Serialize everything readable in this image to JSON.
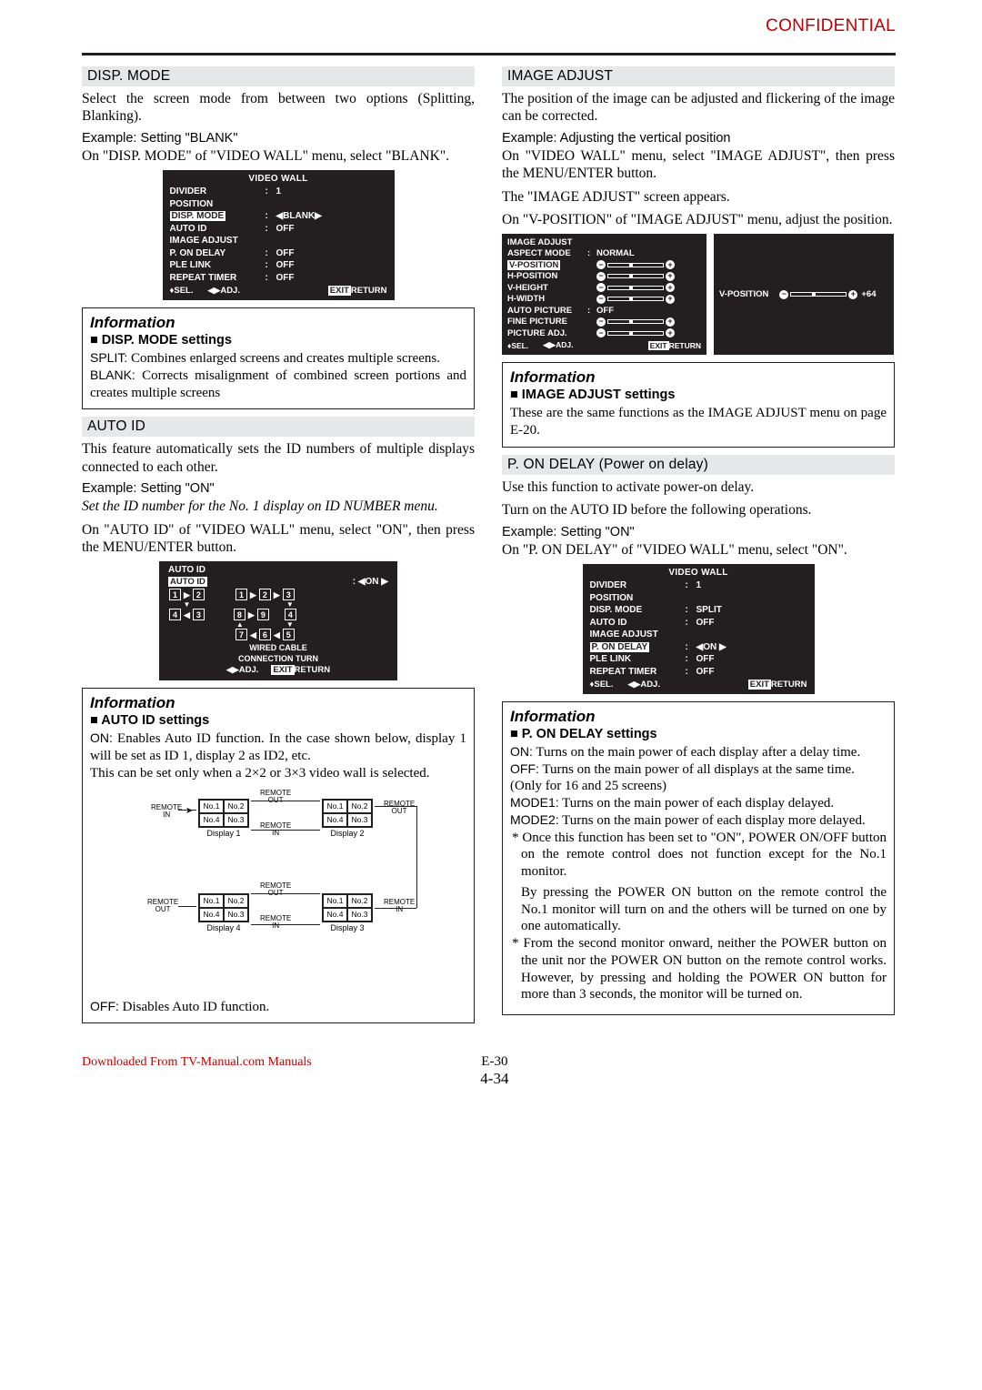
{
  "confidential_label": "CONFIDENTIAL",
  "palette": {
    "accent_red": "#c00000",
    "osd_bg": "#231f20",
    "section_bg": "#e6e7e8",
    "text": "#000000",
    "page_bg": "#ffffff"
  },
  "left": {
    "dispmode": {
      "title": "DISP. MODE",
      "body1": "Select the screen mode from between two options (Splitting, Blanking).",
      "example": "Example: Setting \"BLANK\"",
      "body2": "On \"DISP. MODE\" of \"VIDEO WALL\" menu, select \"BLANK\"."
    },
    "osd_videowall_blank": {
      "title": "VIDEO WALL",
      "rows": [
        {
          "k": "DIVIDER",
          "v": "1",
          "sep": ":"
        },
        {
          "k": "POSITION",
          "v": "",
          "sep": ""
        },
        {
          "k": "DISP. MODE",
          "v": "◀BLANK▶",
          "sep": ": ",
          "hl": true
        },
        {
          "k": "AUTO ID",
          "v": "OFF",
          "sep": ":"
        },
        {
          "k": "IMAGE ADJUST",
          "v": "",
          "sep": ""
        },
        {
          "k": "P. ON DELAY",
          "v": "OFF",
          "sep": ":"
        },
        {
          "k": "PLE LINK",
          "v": "OFF",
          "sep": ":"
        },
        {
          "k": "REPEAT TIMER",
          "v": "OFF",
          "sep": ":"
        }
      ],
      "foot_sel": "SEL.",
      "foot_adj": "ADJ.",
      "foot_exit": "EXIT",
      "foot_return": "RETURN"
    },
    "info_dispmode": {
      "header": "Information",
      "subtitle": "DISP. MODE settings",
      "split_label": "SPLIT:",
      "split_text": " Combines enlarged screens and creates multiple screens.",
      "blank_label": "BLANK:",
      "blank_text": " Corrects misalignment of combined screen portions and creates multiple screens"
    },
    "autoid": {
      "title": "AUTO ID",
      "body1": "This feature automatically sets the ID numbers of multiple displays connected to each other.",
      "example": "Example: Setting \"ON\"",
      "italic": "Set the ID number for the No. 1 display on ID NUMBER menu.",
      "body2": "On \"AUTO ID\" of \"VIDEO WALL\" menu, select \"ON\", then press the MENU/ENTER button."
    },
    "osd_autoid": {
      "title": "AUTO ID",
      "autoid_label": "AUTO ID",
      "autoid_val": "◀ON ▶",
      "wired": "WIRED CABLE",
      "conn": "CONNECTION TURN",
      "foot_adj": "ADJ.",
      "foot_exit": "EXIT",
      "foot_return": "RETURN"
    },
    "info_autoid": {
      "header": "Information",
      "subtitle": "AUTO ID settings",
      "on_label": "ON:",
      "on_text": " Enables Auto ID function. In the case shown below, display 1 will be set as ID 1, display 2 as ID2, etc.",
      "body2": "This can be set only when a 2×2 or 3×3 video wall is selected.",
      "off_label": "OFF:",
      "off_text": " Disables Auto ID function."
    },
    "wiring": {
      "displays": [
        {
          "label": "Display 1",
          "cells": [
            "No.1",
            "No.2",
            "No.4",
            "No.3"
          ]
        },
        {
          "label": "Display 2",
          "cells": [
            "No.1",
            "No.2",
            "No.4",
            "No.3"
          ]
        },
        {
          "label": "Display 4",
          "cells": [
            "No.1",
            "No.2",
            "No.4",
            "No.3"
          ]
        },
        {
          "label": "Display 3",
          "cells": [
            "No.1",
            "No.2",
            "No.4",
            "No.3"
          ]
        }
      ],
      "remote_in": "REMOTE\nIN",
      "remote_out": "REMOTE\nOUT"
    }
  },
  "right": {
    "imageadjust": {
      "title": "IMAGE ADJUST",
      "body1": "The position of the image can be adjusted and flickering of the image can be corrected.",
      "example": "Example: Adjusting the vertical position",
      "body2": "On \"VIDEO WALL\" menu, select \"IMAGE ADJUST\", then press the MENU/ENTER button.",
      "body3": "The \"IMAGE ADJUST\" screen appears.",
      "body4": "On \"V-POSITION\" of \"IMAGE ADJUST\" menu, adjust the position."
    },
    "osd_imageadjust": {
      "title": "IMAGE ADJUST",
      "rows": [
        {
          "k": "ASPECT MODE",
          "sep": ":",
          "v": "NORMAL"
        },
        {
          "k": "V-POSITION",
          "hl": true,
          "slider": true
        },
        {
          "k": "H-POSITION",
          "slider": true
        },
        {
          "k": "V-HEIGHT",
          "slider": true
        },
        {
          "k": "H-WIDTH",
          "slider": true
        },
        {
          "k": "AUTO PICTURE",
          "sep": ":",
          "v": "OFF"
        },
        {
          "k": "FINE PICTURE",
          "slider": true
        },
        {
          "k": "PICTURE ADJ.",
          "slider": true
        }
      ],
      "foot_sel": "SEL.",
      "foot_adj": "ADJ.",
      "foot_exit": "EXIT",
      "foot_return": "RETURN",
      "side_label": "V-POSITION",
      "side_val": "+64"
    },
    "info_imageadjust": {
      "header": "Information",
      "subtitle": "IMAGE ADJUST settings",
      "text": "These are the same functions as the IMAGE ADJUST menu on page E-20."
    },
    "pondelay": {
      "title": "P. ON DELAY (Power on delay)",
      "body1": "Use this function to activate power-on delay.",
      "body2": "Turn on the AUTO ID before the following operations.",
      "example": "Example: Setting \"ON\"",
      "body3": "On \"P. ON DELAY\" of \"VIDEO WALL\" menu, select \"ON\"."
    },
    "osd_videowall_pon": {
      "title": "VIDEO WALL",
      "rows": [
        {
          "k": "DIVIDER",
          "sep": ":",
          "v": "1"
        },
        {
          "k": "POSITION",
          "sep": "",
          "v": ""
        },
        {
          "k": "DISP. MODE",
          "sep": ":",
          "v": "SPLIT"
        },
        {
          "k": "AUTO ID",
          "sep": ":",
          "v": "OFF"
        },
        {
          "k": "IMAGE ADJUST",
          "sep": "",
          "v": ""
        },
        {
          "k": "P. ON DELAY",
          "sep": ": ",
          "v": "◀ON ▶",
          "hl": true
        },
        {
          "k": "PLE LINK",
          "sep": ":",
          "v": "OFF"
        },
        {
          "k": "REPEAT TIMER",
          "sep": ":",
          "v": "OFF"
        }
      ],
      "foot_sel": "SEL.",
      "foot_adj": "ADJ.",
      "foot_exit": "EXIT",
      "foot_return": "RETURN"
    },
    "info_pondelay": {
      "header": "Information",
      "subtitle": "P. ON DELAY settings",
      "on_label": "ON:",
      "on_text": " Turns on the main power of each display after a delay time.",
      "off_label": "OFF:",
      "off_text": " Turns on the main power of all displays at the same time.",
      "only": "(Only for 16 and 25 screens)",
      "m1_label": "MODE1:",
      "m1_text": " Turns on the main power of each display delayed.",
      "m2_label": "MODE2:",
      "m2_text": " Turns on the main power of each display more delayed.",
      "note1": "* Once this function has been set to \"ON\", POWER ON/OFF button on the remote control does not function except for the No.1 monitor.",
      "note1b": "By pressing the POWER ON button on the remote control the No.1 monitor will turn on and the others will be turned on one by one automatically.",
      "note2": "* From the second monitor onward, neither the POWER button on the unit nor the POWER ON button on the remote control works. However, by pressing and holding the POWER ON button for more than 3 seconds, the monitor will be turned on."
    }
  },
  "footer": {
    "dl": "Downloaded From TV-Manual.com Manuals",
    "page_top": "E-30",
    "page_bottom": "4-34"
  }
}
